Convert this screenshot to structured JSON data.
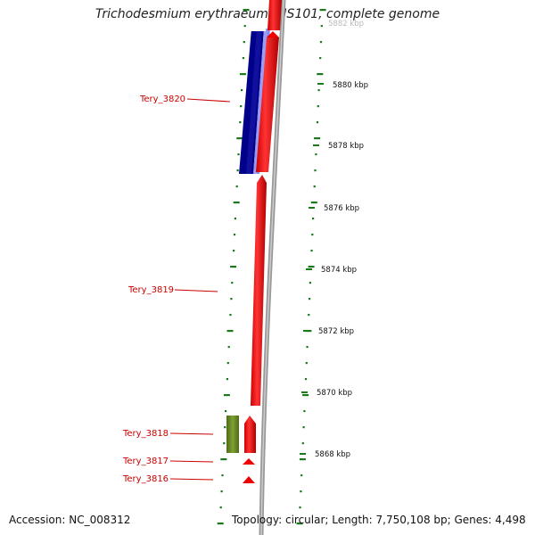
{
  "title": "Trichodesmium erythraeum IMS101, complete genome",
  "top_faint_label": "5882 kbp",
  "footer": {
    "accession": "Accession: NC_008312",
    "topology": "Topology: circular; Length: 7,750,108 bp; Genes: 4,498"
  },
  "genes": [
    {
      "name": "Tery_3820"
    },
    {
      "name": "Tery_3819"
    },
    {
      "name": "Tery_3818"
    },
    {
      "name": "Tery_3817"
    },
    {
      "name": "Tery_3816"
    }
  ],
  "scale_ticks": [
    {
      "label": "5880 kbp"
    },
    {
      "label": "5878 kbp"
    },
    {
      "label": "5876 kbp"
    },
    {
      "label": "5874 kbp"
    },
    {
      "label": "5872 kbp"
    },
    {
      "label": "5870 kbp"
    },
    {
      "label": "5868 kbp"
    }
  ],
  "colors": {
    "gene_forward": "#ee0000",
    "gene_blue": "#00008b",
    "gene_lightblue": "#8888ee",
    "gene_green": "#6b8e23",
    "backbone": "#888888",
    "dots": "#1a7a1a",
    "label": "#cc0000"
  }
}
